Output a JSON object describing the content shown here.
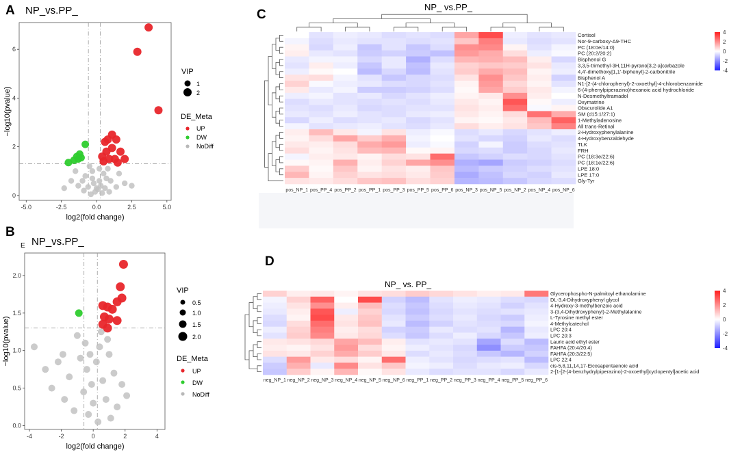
{
  "panels": {
    "A": {
      "letter": "A",
      "title": "NP_vs.PP_",
      "xlabel": "log2(fold change)",
      "ylabel": "−log10(pvalue)"
    },
    "B": {
      "letter": "B",
      "title": "NP_vs.PP_",
      "sub_letter": "E",
      "xlabel": "log2(fold change)",
      "ylabel": "−log10(pvalue)"
    },
    "C": {
      "letter": "C",
      "title": "NP_ vs.PP_"
    },
    "D": {
      "letter": "D",
      "title": "NP_ vs. PP_"
    }
  },
  "legend": {
    "vip_title": "VIP",
    "de_title": "DE_Meta",
    "de_items": [
      {
        "label": "UP",
        "color": "#e8262b"
      },
      {
        "label": "DW",
        "color": "#2ecc2e"
      },
      {
        "label": "NoDiff",
        "color": "#b8b8b8"
      }
    ],
    "A_vip": [
      "1",
      "2"
    ],
    "B_vip": [
      "0.5",
      "1.0",
      "1.5",
      "2.0"
    ]
  },
  "chart_data": [
    {
      "id": "A",
      "type": "scatter",
      "title": "NP_vs.PP_",
      "xlabel": "log2(fold change)",
      "ylabel": "−log10(pvalue)",
      "xlim": [
        -5.5,
        5.3
      ],
      "ylim": [
        -0.2,
        7.1
      ],
      "xticks": [
        "-5.0",
        "-2.5",
        "0.0",
        "2.5",
        "5.0"
      ],
      "xtick_values": [
        -5,
        -2.5,
        0,
        2.5,
        5
      ],
      "yticks": [
        "0",
        "2",
        "4",
        "6"
      ],
      "ytick_values": [
        0,
        2,
        4,
        6
      ],
      "vlines": [
        -0.58,
        0.26
      ],
      "hline": 1.3,
      "series": [
        {
          "name": "UP",
          "points": [
            [
              3.7,
              6.9
            ],
            [
              2.9,
              5.9
            ],
            [
              4.4,
              3.5
            ],
            [
              1.1,
              2.5
            ],
            [
              0.8,
              2.3
            ],
            [
              0.6,
              2.2
            ],
            [
              1.4,
              2.3
            ],
            [
              1.7,
              1.8
            ],
            [
              1.1,
              1.95
            ],
            [
              0.7,
              1.8
            ],
            [
              0.4,
              1.6
            ],
            [
              1.3,
              1.5
            ],
            [
              2.0,
              1.5
            ],
            [
              0.5,
              1.4
            ],
            [
              1.5,
              1.35
            ],
            [
              0.9,
              1.5
            ]
          ]
        },
        {
          "name": "DW",
          "points": [
            [
              -0.8,
              2.1
            ],
            [
              -1.2,
              1.7
            ],
            [
              -1.4,
              1.6
            ],
            [
              -1.1,
              1.55
            ],
            [
              -1.6,
              1.45
            ],
            [
              -2.0,
              1.35
            ],
            [
              -1.3,
              1.5
            ]
          ]
        },
        {
          "name": "NoDiff",
          "points": [
            [
              -0.5,
              1.2
            ],
            [
              -0.3,
              1.0
            ],
            [
              0.2,
              1.1
            ],
            [
              0.5,
              0.9
            ],
            [
              -0.8,
              0.8
            ],
            [
              0.7,
              0.7
            ],
            [
              -1.0,
              0.6
            ],
            [
              1.0,
              0.6
            ],
            [
              -0.2,
              0.5
            ],
            [
              0.3,
              0.4
            ],
            [
              -0.6,
              0.35
            ],
            [
              0.1,
              0.25
            ],
            [
              -0.1,
              0.15
            ],
            [
              0.4,
              0.1
            ],
            [
              -0.4,
              0.05
            ],
            [
              0.0,
              0.3
            ],
            [
              0.6,
              0.3
            ],
            [
              -1.3,
              0.4
            ],
            [
              1.4,
              0.35
            ],
            [
              -1.8,
              0.6
            ],
            [
              2.0,
              0.5
            ],
            [
              -0.9,
              0.2
            ],
            [
              0.9,
              0.15
            ],
            [
              1.6,
              0.9
            ],
            [
              -1.5,
              1.0
            ],
            [
              -0.3,
              0.7
            ],
            [
              0.2,
              0.6
            ],
            [
              0.8,
              1.1
            ],
            [
              -2.3,
              0.3
            ],
            [
              2.5,
              0.4
            ]
          ]
        }
      ]
    },
    {
      "id": "B",
      "type": "scatter",
      "title": "NP_vs.PP_",
      "xlabel": "log2(fold change)",
      "ylabel": "−log10(pvalue)",
      "xlim": [
        -4.3,
        4.5
      ],
      "ylim": [
        -0.05,
        2.3
      ],
      "xticks": [
        "-4",
        "-2",
        "0",
        "2",
        "4"
      ],
      "xtick_values": [
        -4,
        -2,
        0,
        2,
        4
      ],
      "yticks": [
        "0.0",
        "0.5",
        "1.0",
        "1.5",
        "2.0"
      ],
      "ytick_values": [
        0,
        0.5,
        1.0,
        1.5,
        2.0
      ],
      "vlines": [
        -0.58,
        0.26
      ],
      "hline": 1.3,
      "series": [
        {
          "name": "UP",
          "points": [
            [
              1.9,
              2.15
            ],
            [
              1.7,
              1.85
            ],
            [
              1.8,
              1.7
            ],
            [
              1.5,
              1.65
            ],
            [
              0.6,
              1.6
            ],
            [
              0.9,
              1.58
            ],
            [
              1.2,
              1.55
            ],
            [
              0.7,
              1.45
            ],
            [
              1.0,
              1.42
            ],
            [
              0.6,
              1.35
            ],
            [
              0.9,
              1.3
            ],
            [
              1.5,
              1.4
            ]
          ]
        },
        {
          "name": "DW",
          "points": [
            [
              -0.9,
              1.5
            ]
          ]
        },
        {
          "name": "NoDiff",
          "points": [
            [
              -3.7,
              1.05
            ],
            [
              -3.0,
              0.75
            ],
            [
              -2.6,
              0.5
            ],
            [
              -2.2,
              0.85
            ],
            [
              -1.8,
              0.35
            ],
            [
              -1.5,
              0.65
            ],
            [
              -1.2,
              0.2
            ],
            [
              -1.0,
              1.2
            ],
            [
              -0.8,
              0.9
            ],
            [
              -0.6,
              0.45
            ],
            [
              -0.4,
              0.75
            ],
            [
              -0.3,
              0.15
            ],
            [
              -0.1,
              0.55
            ],
            [
              0.0,
              0.3
            ],
            [
              0.2,
              0.85
            ],
            [
              0.3,
              0.05
            ],
            [
              0.4,
              1.05
            ],
            [
              0.6,
              0.6
            ],
            [
              0.8,
              0.35
            ],
            [
              1.0,
              0.95
            ],
            [
              1.3,
              0.7
            ],
            [
              1.5,
              0.25
            ],
            [
              1.8,
              0.55
            ],
            [
              2.1,
              0.4
            ],
            [
              0.5,
              1.25
            ],
            [
              -0.5,
              1.1
            ],
            [
              0.9,
              1.15
            ],
            [
              -1.9,
              0.95
            ],
            [
              1.1,
              0.1
            ],
            [
              -0.2,
              0.95
            ]
          ]
        }
      ]
    },
    {
      "id": "C",
      "type": "heatmap",
      "title": "NP_ vs.PP_",
      "columns": [
        "pos_NP_1",
        "pos_PP_4",
        "pos_PP_2",
        "pos_PP_1",
        "pos_PP_3",
        "pos_PP_5",
        "pos_PP_6",
        "pos_NP_3",
        "pos_NP_5",
        "pos_NP_2",
        "pos_NP_4",
        "pos_NP_6"
      ],
      "rows": [
        "Cortisol",
        "Nor-9-carboxy-Δ9-THC",
        "PC (18:0e/14:0)",
        "PC (20:2/20:2)",
        "Bisphenol G",
        "3,3,5-trimethyl-3H,11H-pyrano[3,2-a]carbazole",
        "4,4'-dimethoxy[1,1'-biphenyl]-2-carbonitrile",
        "Bisphenol A",
        "N1-[2-(4-chlorophenyl)-2-oxoethyl]-4-chlorobenzamide",
        "6-(4-phenylpiperazino)hexanoic acid hydrochloride",
        "N-Desmethyltramadol",
        "Oxymatrine",
        "Obscurolide A1",
        "SM (d15:1/27:1)",
        "1-Methyladenosine",
        "All trans-Retinal",
        "2-Hydroxyphenylalanine",
        "4-Hydroxybenzaldehyde",
        "TLK",
        "FRH",
        "PC (18:3e/22:6)",
        "PC (18:1e/22:6)",
        "LPE 18:0",
        "LPE 17:0",
        "Gly-Tyr"
      ],
      "values": [
        [
          0.0,
          -0.5,
          -0.3,
          -0.4,
          -0.6,
          -0.5,
          -0.6,
          1.6,
          3.2,
          -0.3,
          -0.5,
          -0.4
        ],
        [
          -0.2,
          -0.6,
          -0.4,
          -0.5,
          -0.5,
          -0.6,
          -0.5,
          1.0,
          2.3,
          -0.4,
          -0.6,
          -0.5
        ],
        [
          0.2,
          -0.7,
          -0.3,
          -1.0,
          -0.5,
          -1.0,
          -0.6,
          2.0,
          2.1,
          0.2,
          -0.5,
          -0.2
        ],
        [
          0.3,
          -0.4,
          -0.5,
          -0.9,
          -0.8,
          -0.9,
          -1.1,
          1.8,
          1.5,
          0.6,
          -0.3,
          -0.1
        ],
        [
          -0.4,
          -0.2,
          -0.2,
          -0.7,
          -0.4,
          -1.4,
          -0.6,
          1.3,
          1.4,
          1.2,
          0.3,
          -0.7
        ],
        [
          -0.5,
          0.3,
          -0.3,
          -1.0,
          -0.4,
          -1.1,
          -0.4,
          0.8,
          1.0,
          0.9,
          0.5,
          -0.4
        ],
        [
          -0.3,
          0.1,
          0.0,
          -1.2,
          -0.7,
          -1.2,
          -0.5,
          0.9,
          1.5,
          1.2,
          0.2,
          -0.3
        ],
        [
          0.5,
          0.6,
          -0.2,
          -0.5,
          -1.0,
          -0.7,
          -0.6,
          0.5,
          2.0,
          1.0,
          0.3,
          -0.8
        ],
        [
          0.8,
          -0.1,
          -0.3,
          -0.4,
          -0.6,
          -0.7,
          -0.5,
          0.2,
          1.8,
          0.7,
          0.2,
          -0.5
        ],
        [
          0.4,
          -0.4,
          -0.2,
          -0.9,
          -0.9,
          -0.8,
          -0.6,
          0.1,
          1.6,
          0.9,
          0.4,
          -0.2
        ],
        [
          -0.3,
          -0.2,
          -0.5,
          -0.4,
          -0.7,
          -0.5,
          -0.3,
          0.2,
          0.4,
          2.0,
          0.3,
          0.0
        ],
        [
          -0.6,
          -0.4,
          -0.5,
          -0.6,
          -0.5,
          -0.6,
          -0.4,
          0.4,
          0.2,
          3.0,
          0.1,
          -0.3
        ],
        [
          -0.5,
          -0.6,
          -0.4,
          -0.7,
          -0.6,
          -0.5,
          -0.5,
          0.5,
          0.3,
          2.6,
          -0.1,
          0.2
        ],
        [
          -0.4,
          -0.5,
          -0.3,
          -0.5,
          -0.6,
          -0.4,
          -0.3,
          0.4,
          0.2,
          0.6,
          2.5,
          1.5
        ],
        [
          -0.7,
          -0.3,
          -0.6,
          -0.5,
          -0.4,
          -0.7,
          -0.5,
          0.2,
          0.1,
          0.4,
          1.2,
          2.8
        ],
        [
          -0.2,
          -0.5,
          -0.4,
          -0.3,
          -0.5,
          -0.6,
          -0.4,
          0.6,
          0.3,
          0.5,
          1.0,
          2.2
        ],
        [
          0.3,
          1.2,
          0.4,
          -0.2,
          0.5,
          -0.3,
          -0.1,
          -0.6,
          -0.4,
          -0.7,
          -0.5,
          -0.3
        ],
        [
          0.2,
          0.6,
          1.6,
          0.9,
          1.4,
          -0.2,
          0.0,
          -0.5,
          -0.7,
          -0.8,
          -0.4,
          -0.6
        ],
        [
          0.4,
          0.3,
          0.6,
          1.5,
          1.8,
          -0.3,
          -0.1,
          -0.8,
          -0.2,
          -0.9,
          -0.6,
          -0.5
        ],
        [
          0.6,
          0.2,
          0.5,
          1.2,
          1.3,
          0.1,
          0.2,
          -0.7,
          -0.6,
          -0.9,
          -0.7,
          -0.4
        ],
        [
          -0.2,
          0.3,
          0.4,
          0.2,
          0.6,
          0.5,
          2.6,
          -1.0,
          -0.8,
          -0.6,
          -0.7,
          -0.5
        ],
        [
          0.1,
          0.2,
          1.4,
          0.3,
          0.8,
          1.6,
          2.0,
          -1.4,
          -1.6,
          -0.9,
          -0.8,
          -0.6
        ],
        [
          0.9,
          0.1,
          1.0,
          0.2,
          0.5,
          0.3,
          1.0,
          -1.2,
          -0.9,
          -0.8,
          -0.6,
          -0.5
        ],
        [
          1.3,
          0.2,
          0.8,
          0.5,
          0.6,
          0.4,
          0.9,
          -1.5,
          -1.1,
          -0.7,
          -0.8,
          -0.4
        ],
        [
          0.5,
          0.4,
          0.6,
          1.0,
          1.1,
          0.6,
          0.8,
          -1.3,
          -1.2,
          -1.0,
          -0.7,
          -0.6
        ]
      ],
      "colorbar": {
        "ticks": [
          "4",
          "2",
          "0",
          "-2",
          "-4"
        ],
        "range": [
          -4,
          4
        ]
      }
    },
    {
      "id": "D",
      "type": "heatmap",
      "title": "NP_ vs. PP_",
      "columns": [
        "neg_NP_1",
        "neg_NP_2",
        "neg_NP_3",
        "neg_NP_4",
        "neg_NP_5",
        "neg_NP_6",
        "neg_PP_1",
        "neg_PP_2",
        "neg_PP_3",
        "neg_PP_4",
        "neg_PP_5",
        "neg_PP_6"
      ],
      "rows": [
        "Glycerophospho-N-palmitoyl ethanolamine",
        "DL-3,4-Dihydroxyphenyl glycol",
        "4-Hydroxy-3-methylbenzoic acid",
        "3-(3,4-Dihydroxyphenyl)-2-Methylalanine",
        "L-Tyrosine methyl ester",
        "4-Methylcatechol",
        "LPC 20:4",
        "LPC 20:3",
        "Lauric acid ethyl ester",
        "FAHFA (20:4/20:4)",
        "FAHFA (20:3/22:5)",
        "LPC 22:4",
        "cis-5,8,11,14,17-Eicosapentaenoic acid",
        "2-[1-[2-(4-benzhydrylpiperazino)-2-oxoethyl]cyclopentyl]acetic acid"
      ],
      "values": [
        [
          0.8,
          0.3,
          0.4,
          0.2,
          0.5,
          0.6,
          0.9,
          0.7,
          0.5,
          0.3,
          0.4,
          2.4
        ],
        [
          -0.2,
          0.8,
          2.8,
          0.0,
          3.2,
          -0.8,
          -1.2,
          -0.5,
          -0.3,
          -0.4,
          -0.6,
          -0.7
        ],
        [
          -0.3,
          0.5,
          2.0,
          0.3,
          1.2,
          -0.6,
          -1.0,
          -0.6,
          -0.4,
          -0.5,
          -0.8,
          -0.5
        ],
        [
          -0.4,
          0.3,
          3.0,
          -0.3,
          0.8,
          -0.7,
          -1.1,
          -0.7,
          -0.5,
          -0.6,
          -0.5,
          -0.4
        ],
        [
          -0.6,
          0.2,
          3.2,
          0.4,
          1.0,
          -0.5,
          -0.9,
          -0.6,
          -0.4,
          -0.7,
          -0.9,
          -0.3
        ],
        [
          -0.7,
          0.6,
          2.6,
          0.5,
          1.1,
          -0.4,
          -1.2,
          -0.8,
          -0.5,
          -0.6,
          -0.7,
          -0.2
        ],
        [
          -0.3,
          0.8,
          2.3,
          0.3,
          0.6,
          -0.8,
          -0.9,
          -0.4,
          -0.6,
          -0.5,
          -1.3,
          -0.4
        ],
        [
          -0.5,
          0.9,
          2.1,
          0.4,
          0.7,
          -0.6,
          -1.0,
          -0.6,
          -0.3,
          -0.7,
          -1.0,
          -0.3
        ],
        [
          0.4,
          0.5,
          0.7,
          1.6,
          1.2,
          0.3,
          -0.5,
          -0.4,
          -0.5,
          -1.6,
          -0.6,
          -1.2
        ],
        [
          0.3,
          0.2,
          0.5,
          1.8,
          0.6,
          0.2,
          -0.3,
          -0.5,
          -0.7,
          -2.0,
          -0.9,
          -1.0
        ],
        [
          0.5,
          0.4,
          0.8,
          1.5,
          0.9,
          0.4,
          -0.6,
          -0.4,
          -0.6,
          -1.0,
          -1.3,
          -0.8
        ],
        [
          -0.6,
          1.8,
          0.4,
          0.6,
          0.2,
          2.6,
          -0.3,
          -0.5,
          -0.7,
          -0.6,
          -0.5,
          -1.2
        ],
        [
          -0.9,
          1.4,
          -0.4,
          2.1,
          0.5,
          1.0,
          -0.2,
          -0.3,
          -0.6,
          -0.4,
          -0.3,
          -0.7
        ],
        [
          -1.0,
          0.9,
          0.2,
          1.3,
          0.1,
          0.5,
          -0.4,
          -0.6,
          -0.5,
          -0.5,
          -0.7,
          -0.4
        ]
      ],
      "colorbar": {
        "ticks": [
          "4",
          "2",
          "0",
          "-2",
          "-4"
        ],
        "range": [
          -4,
          4
        ]
      }
    }
  ]
}
